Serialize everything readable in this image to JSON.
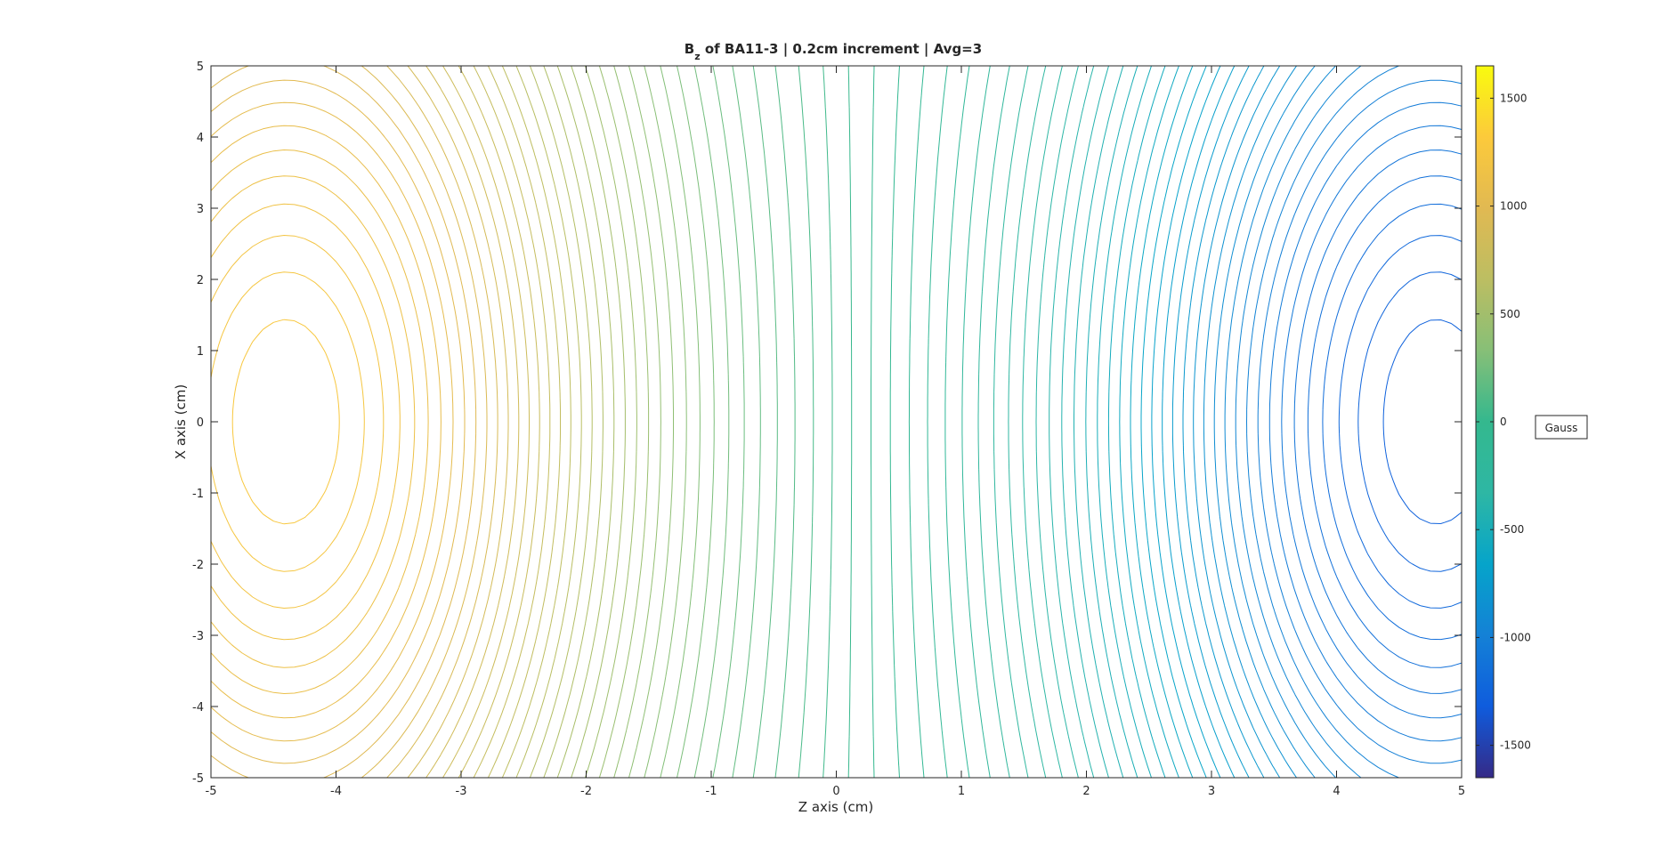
{
  "chart_data": {
    "type": "contour",
    "title": {
      "main": "B",
      "subscript": "z",
      "rest": " of BA11-3 | 0.2cm increment | Avg=3"
    },
    "xlabel": "Z axis (cm)",
    "ylabel": "X axis (cm)",
    "xlim": [
      -5,
      5
    ],
    "ylim": [
      -5,
      5
    ],
    "xticks": [
      "-5",
      "-4",
      "-3",
      "-2",
      "-1",
      "0",
      "1",
      "2",
      "3",
      "4",
      "5"
    ],
    "yticks": [
      "-5",
      "-4",
      "-3",
      "-2",
      "-1",
      "0",
      "1",
      "2",
      "3",
      "4",
      "5"
    ],
    "colorbar": {
      "range": [
        -1650,
        1650
      ],
      "ticks": [
        "-1500",
        "-1000",
        "-500",
        "0",
        "500",
        "1000",
        "1500"
      ],
      "label": "Gauss",
      "colormap": "parula"
    },
    "field_extrema": {
      "max": {
        "value": 1600,
        "z": -4.4,
        "x": 0
      },
      "min": {
        "value": -1600,
        "z": 4.8,
        "x": 0
      }
    },
    "contour_levels": 100,
    "grid": false
  }
}
